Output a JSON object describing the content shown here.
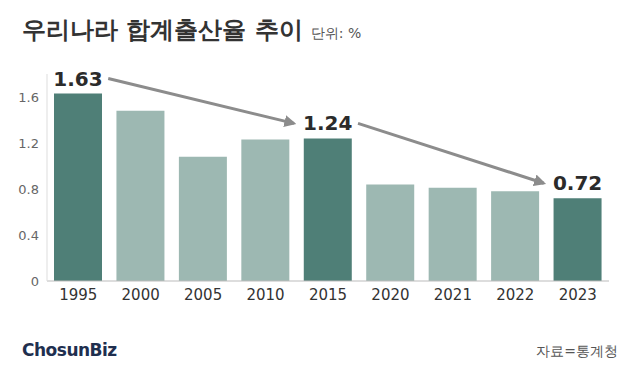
{
  "chart_data": {
    "type": "bar",
    "title": "우리나라 합계출산율 추이",
    "subtitle": "단위: %",
    "categories": [
      "1995",
      "2000",
      "2005",
      "2010",
      "2015",
      "2020",
      "2021",
      "2022",
      "2023"
    ],
    "values": [
      1.63,
      1.48,
      1.08,
      1.23,
      1.24,
      0.84,
      0.81,
      0.78,
      0.72
    ],
    "colors": [
      "#4f7f77",
      "#9db8b2",
      "#9db8b2",
      "#9db8b2",
      "#4f7f77",
      "#9db8b2",
      "#9db8b2",
      "#9db8b2",
      "#4f7f77"
    ],
    "value_labels": [
      "1.63",
      null,
      null,
      null,
      "1.24",
      null,
      null,
      null,
      "0.72"
    ],
    "data_labels": true,
    "ylim": [
      0,
      1.8
    ],
    "yticks": [
      0,
      0.4,
      0.8,
      1.2,
      1.6
    ],
    "grid": false,
    "source": "자료=통계청",
    "logo": "ChosunBiz"
  }
}
